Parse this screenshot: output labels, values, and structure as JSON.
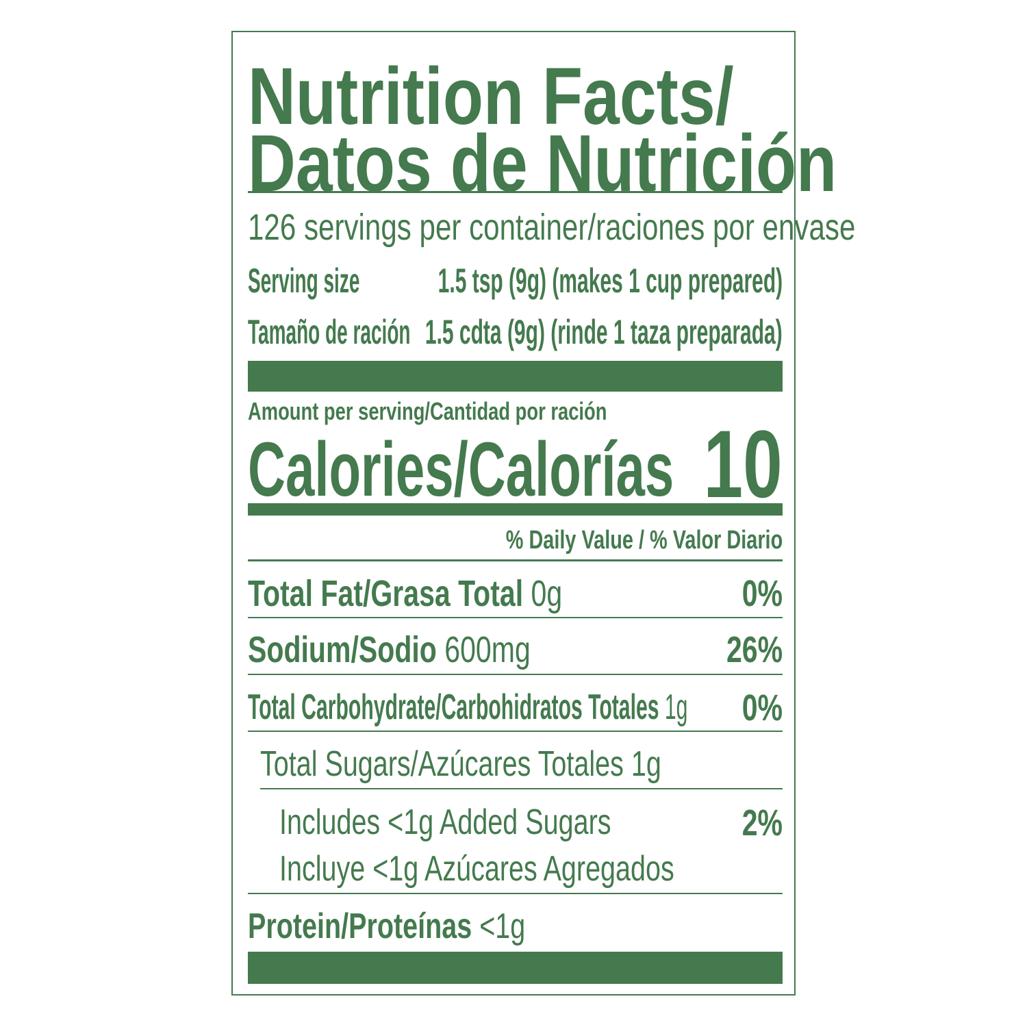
{
  "title_line1": "Nutrition Facts/",
  "title_line2": "Datos de Nutrición",
  "servings": "126 servings per container/raciones por envase",
  "serving_size": {
    "label": "Serving size",
    "value": "1.5 tsp (9g) (makes 1 cup prepared)"
  },
  "serving_size_es": {
    "label": "Tamaño de ración",
    "value": "1.5 cdta (9g) (rinde 1 taza preparada)"
  },
  "amount_per_serving": "Amount per serving/Cantidad por ración",
  "calories": {
    "label": "Calories/Calorías",
    "value": "10"
  },
  "daily_value_header": "% Daily Value / % Valor Diario",
  "nutrients": [
    {
      "label": "Total Fat/Grasa Total",
      "amount": "0g",
      "dv": "0%"
    },
    {
      "label": "Sodium/Sodio",
      "amount": "600mg",
      "dv": "26%"
    },
    {
      "label": "Total Carbohydrate/Carbohidratos Totales",
      "amount": "1g",
      "dv": "0%"
    },
    {
      "label": "Total Sugars/Azúcares Totales 1g"
    },
    {
      "label": "Includes <1g Added Sugars",
      "label_es": "Incluye <1g Azúcares Agregados",
      "dv": "2%"
    },
    {
      "label": "Protein/Proteínas",
      "amount": "<1g"
    }
  ],
  "colors": {
    "ink": "#447a4e",
    "background": "#ffffff"
  }
}
